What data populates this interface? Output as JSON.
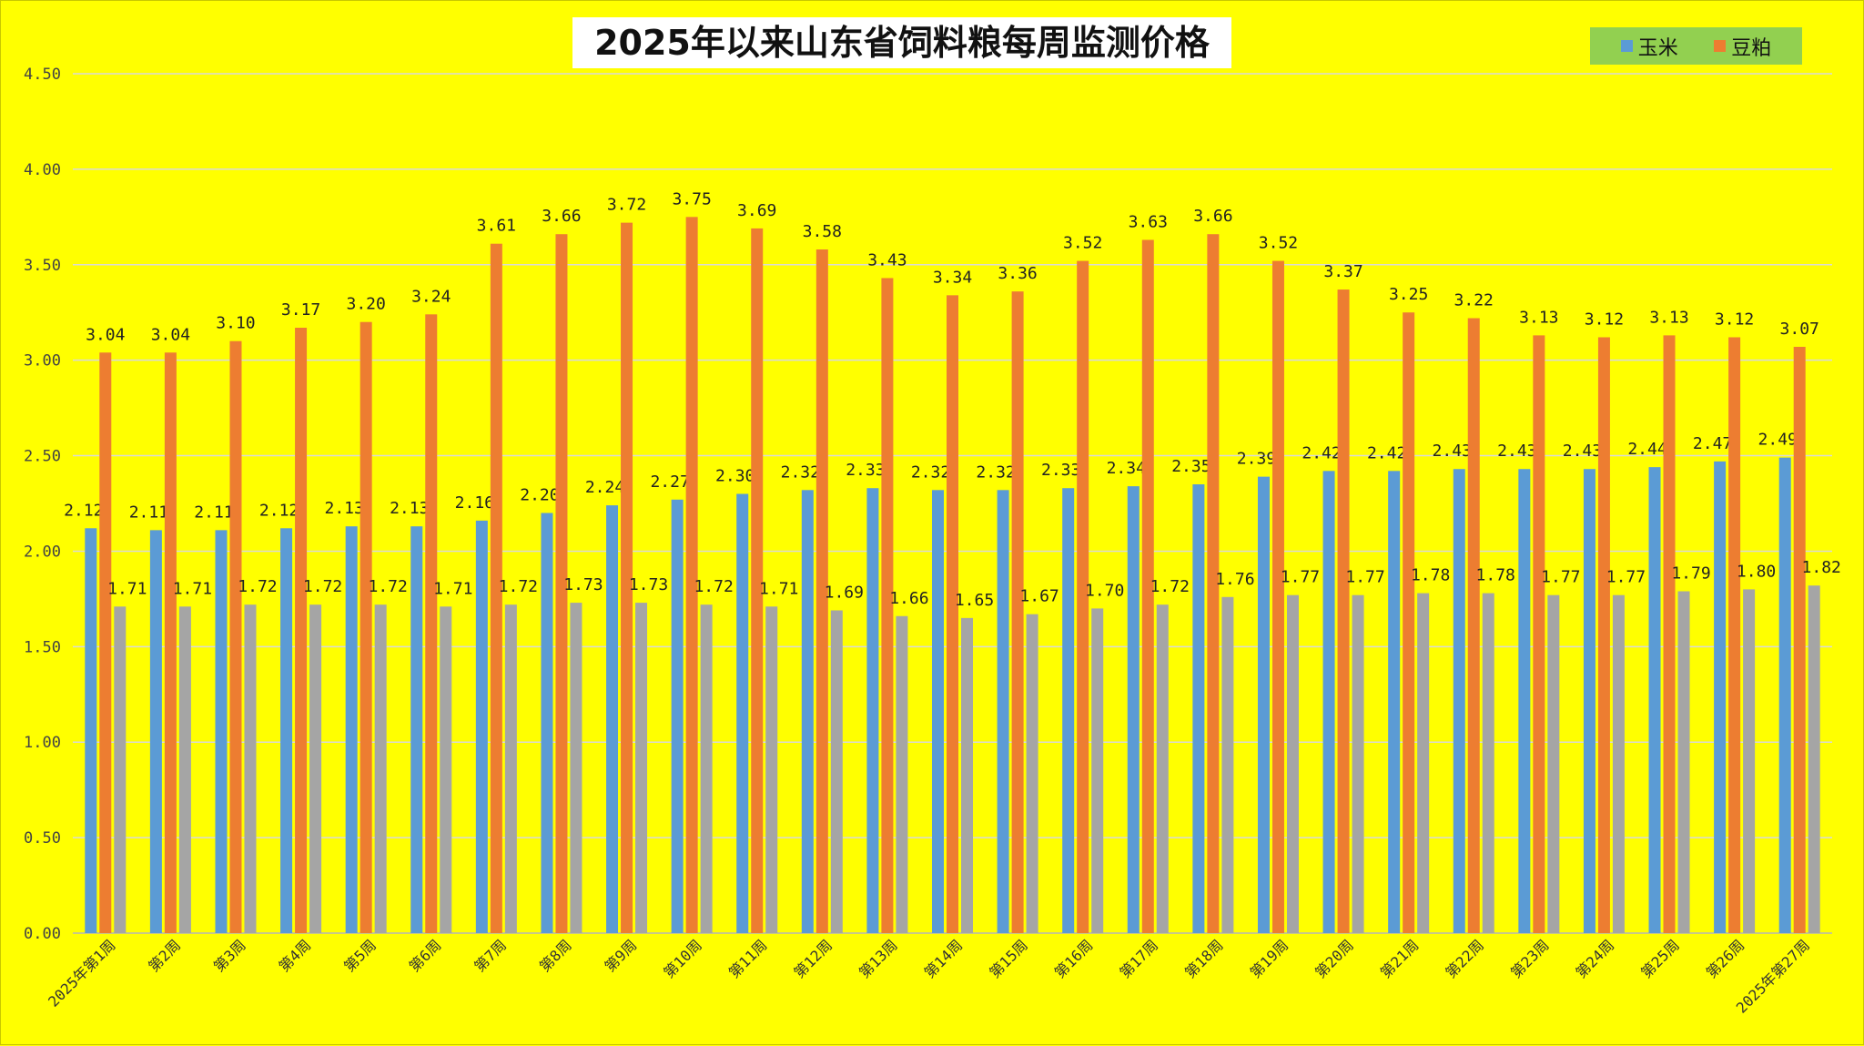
{
  "chart_data": {
    "type": "bar",
    "title": "2025年以来山东省饲料粮每周监测价格",
    "ylim": [
      0,
      4.5
    ],
    "yticks": [
      "0.00",
      "0.50",
      "1.00",
      "1.50",
      "2.00",
      "2.50",
      "3.00",
      "3.50",
      "4.00",
      "4.50"
    ],
    "grid": true,
    "legend_position": "top-right",
    "categories": [
      "2025年第1周",
      "第2周",
      "第3周",
      "第4周",
      "第5周",
      "第6周",
      "第7周",
      "第8周",
      "第9周",
      "第10周",
      "第11周",
      "第12周",
      "第13周",
      "第14周",
      "第15周",
      "第16周",
      "第17周",
      "第18周",
      "第19周",
      "第20周",
      "第21周",
      "第22周",
      "第23周",
      "第24周",
      "第25周",
      "第26周",
      "2025年第27周"
    ],
    "series": [
      {
        "name": "玉米",
        "color": "#5b9bd5",
        "values": [
          2.12,
          2.11,
          2.11,
          2.12,
          2.13,
          2.13,
          2.16,
          2.2,
          2.24,
          2.27,
          2.3,
          2.32,
          2.33,
          2.32,
          2.32,
          2.33,
          2.34,
          2.35,
          2.39,
          2.42,
          2.42,
          2.43,
          2.43,
          2.43,
          2.44,
          2.47,
          2.49
        ]
      },
      {
        "name": "豆粕",
        "color": "#ed7d31",
        "values": [
          3.04,
          3.04,
          3.1,
          3.17,
          3.2,
          3.24,
          3.61,
          3.66,
          3.72,
          3.75,
          3.69,
          3.58,
          3.43,
          3.34,
          3.36,
          3.52,
          3.63,
          3.66,
          3.52,
          3.37,
          3.25,
          3.22,
          3.13,
          3.12,
          3.13,
          3.12,
          3.07
        ]
      },
      {
        "color": "#a5a5a5",
        "values": [
          1.71,
          1.71,
          1.72,
          1.72,
          1.72,
          1.71,
          1.72,
          1.73,
          1.73,
          1.72,
          1.71,
          1.69,
          1.66,
          1.65,
          1.67,
          1.7,
          1.72,
          1.76,
          1.77,
          1.77,
          1.78,
          1.78,
          1.77,
          1.77,
          1.79,
          1.8,
          1.82
        ]
      }
    ],
    "data_labels": [
      [
        "2.12",
        "2.11",
        "2.11",
        "2.12",
        "2.13",
        "2.13",
        "2.16",
        "2.20",
        "2.24",
        "2.27",
        "2.30",
        "2.32",
        "2.33",
        "2.32",
        "2.32",
        "2.33",
        "2.34",
        "2.35",
        "2.39",
        "2.42",
        "2.42",
        "2.43",
        "2.43",
        "2.43",
        "2.44",
        "2.47",
        "2.49"
      ],
      [
        "3.04",
        "3.04",
        "3.10",
        "3.17",
        "3.20",
        "3.24",
        "3.61",
        "3.66",
        "3.72",
        "3.75",
        "3.69",
        "3.58",
        "3.43",
        "3.34",
        "3.36",
        "3.52",
        "3.63",
        "3.66",
        "3.52",
        "3.37",
        "3.25",
        "3.22",
        "3.13",
        "3.12",
        "3.13",
        "3.12",
        "3.07"
      ],
      [
        "1.71",
        "1.71",
        "1.72",
        "1.72",
        "1.72",
        "1.71",
        "1.72",
        "1.73",
        "1.73",
        "1.72",
        "1.71",
        "1.69",
        "1.66",
        "1.65",
        "1.67",
        "1.70",
        "1.72",
        "1.76",
        "1.77",
        "1.77",
        "1.78",
        "1.78",
        "1.77",
        "1.77",
        "1.79",
        "1.80",
        "1.82"
      ]
    ]
  }
}
